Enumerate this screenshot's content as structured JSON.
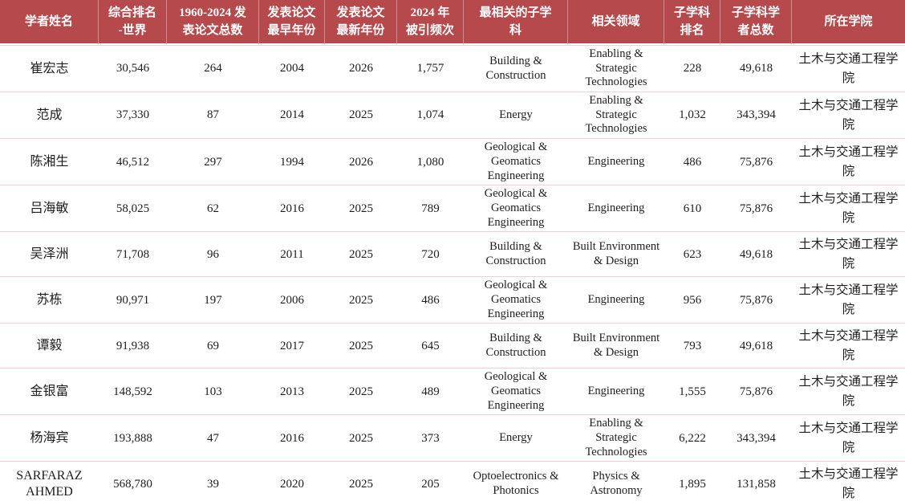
{
  "colors": {
    "header_background": "#b5494c",
    "header_text": "#ffffff",
    "header_separator": "#cb8d8f",
    "row_divider": "#eed2d2",
    "body_text": "#1d1d1d"
  },
  "table": {
    "columns": [
      {
        "id": "name",
        "label": "学者姓名"
      },
      {
        "id": "world-rank",
        "label": "综合排名\n-世界"
      },
      {
        "id": "total-papers",
        "label": "1960-2024 发\n表论文总数"
      },
      {
        "id": "earliest-year",
        "label": "发表论文\n最早年份"
      },
      {
        "id": "latest-year",
        "label": "发表论文\n最新年份"
      },
      {
        "id": "citations-2024",
        "label": "2024 年\n被引频次"
      },
      {
        "id": "subdiscipline",
        "label": "最相关的子学\n科"
      },
      {
        "id": "field",
        "label": "相关领域"
      },
      {
        "id": "subdiscipline-rank",
        "label": "子学科\n排名"
      },
      {
        "id": "subdiscipline-scholars",
        "label": "子学科学\n者总数"
      },
      {
        "id": "college",
        "label": "所在学院"
      }
    ],
    "rows": [
      [
        "崔宏志",
        "30,546",
        "264",
        "2004",
        "2026",
        "1,757",
        "Building & Construction",
        "Enabling & Strategic Technologies",
        "228",
        "49,618",
        "土木与交通工程学院"
      ],
      [
        "范成",
        "37,330",
        "87",
        "2014",
        "2025",
        "1,074",
        "Energy",
        "Enabling & Strategic Technologies",
        "1,032",
        "343,394",
        "土木与交通工程学院"
      ],
      [
        "陈湘生",
        "46,512",
        "297",
        "1994",
        "2026",
        "1,080",
        "Geological & Geomatics Engineering",
        "Engineering",
        "486",
        "75,876",
        "土木与交通工程学院"
      ],
      [
        "吕海敏",
        "58,025",
        "62",
        "2016",
        "2025",
        "789",
        "Geological & Geomatics Engineering",
        "Engineering",
        "610",
        "75,876",
        "土木与交通工程学院"
      ],
      [
        "吴泽洲",
        "71,708",
        "96",
        "2011",
        "2025",
        "720",
        "Building & Construction",
        "Built Environment & Design",
        "623",
        "49,618",
        "土木与交通工程学院"
      ],
      [
        "苏栋",
        "90,971",
        "197",
        "2006",
        "2025",
        "486",
        "Geological & Geomatics Engineering",
        "Engineering",
        "956",
        "75,876",
        "土木与交通工程学院"
      ],
      [
        "谭毅",
        "91,938",
        "69",
        "2017",
        "2025",
        "645",
        "Building & Construction",
        "Built Environment & Design",
        "793",
        "49,618",
        "土木与交通工程学院"
      ],
      [
        "金银富",
        "148,592",
        "103",
        "2013",
        "2025",
        "489",
        "Geological & Geomatics Engineering",
        "Engineering",
        "1,555",
        "75,876",
        "土木与交通工程学院"
      ],
      [
        "杨海宾",
        "193,888",
        "47",
        "2016",
        "2025",
        "373",
        "Energy",
        "Enabling & Strategic Technologies",
        "6,222",
        "343,394",
        "土木与交通工程学院"
      ],
      [
        "SARFARAZ AHMED",
        "568,780",
        "39",
        "2020",
        "2025",
        "205",
        "Optoelectronics & Photonics",
        "Physics & Astronomy",
        "1,895",
        "131,858",
        "土木与交通工程学院"
      ]
    ]
  }
}
